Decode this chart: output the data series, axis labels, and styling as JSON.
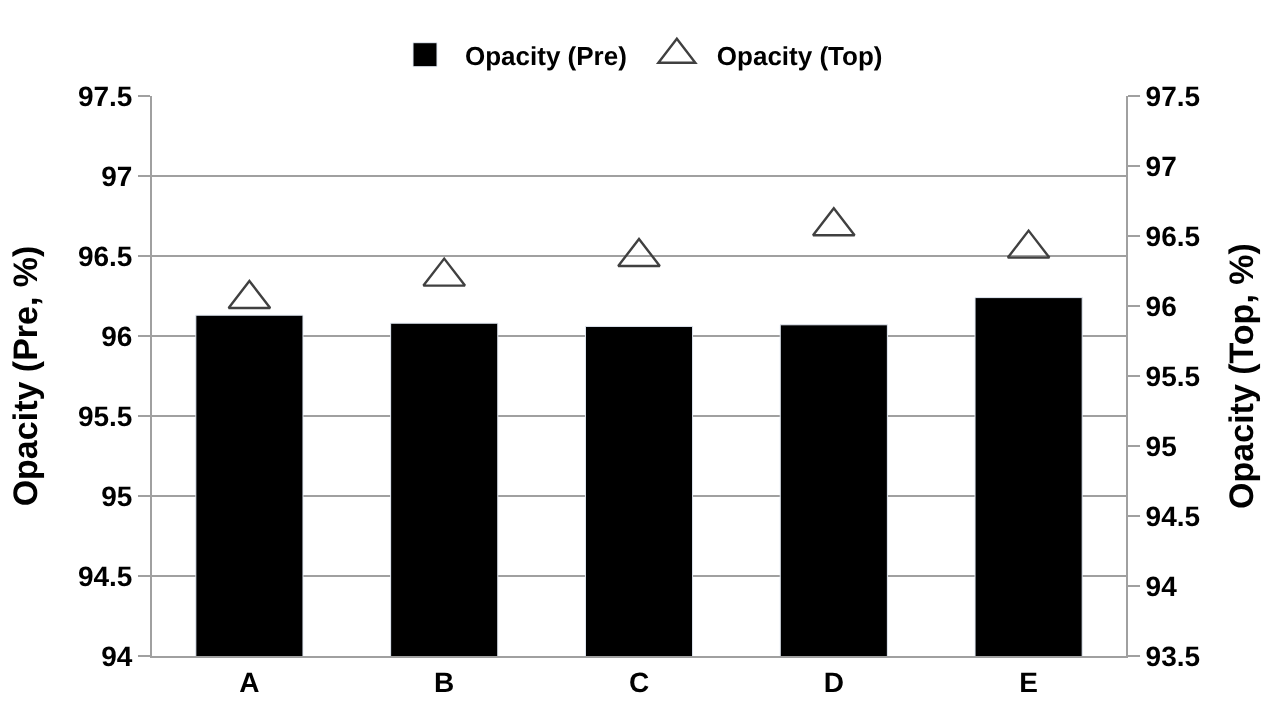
{
  "chart_data": {
    "type": "bar",
    "categories": [
      "A",
      "B",
      "C",
      "D",
      "E"
    ],
    "ylabel": "Opacity (Pre, %)",
    "y2label": "Opacity (Top, %)",
    "series": [
      {
        "name": "Opacity (Pre)",
        "color": "#000000",
        "values": [
          96.13,
          96.08,
          96.06,
          96.07,
          96.24
        ]
      },
      {
        "name": "Opacity (Top)",
        "type": "scatter",
        "axis": "y2",
        "marker": "triangle",
        "color": "#404040",
        "values": [
          96.05,
          96.21,
          96.35,
          96.57,
          96.41
        ]
      }
    ],
    "ylim": [
      94,
      97.5
    ],
    "yticks": [
      94,
      94.5,
      95,
      95.5,
      96,
      96.5,
      97,
      97.5
    ],
    "y2lim": [
      93.5,
      97.5
    ],
    "y2ticks": [
      93.5,
      94,
      94.5,
      95,
      95.5,
      96,
      96.5,
      97,
      97.5
    ],
    "grid": "y",
    "legend": "top"
  }
}
